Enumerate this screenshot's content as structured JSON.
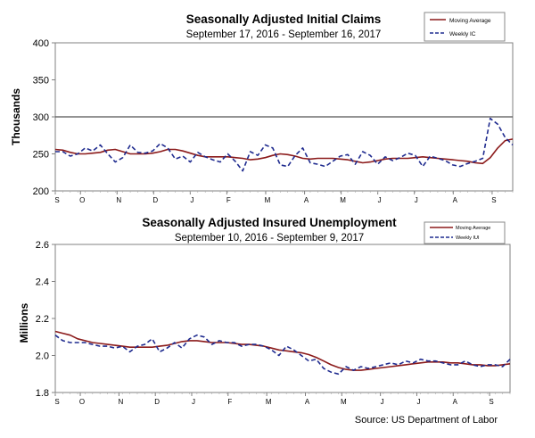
{
  "chart_data": [
    {
      "type": "line",
      "title": "Seasonally Adjusted Initial Claims",
      "subtitle": "September 17, 2016  -  September 16, 2017",
      "ylabel": "Thousands",
      "xlabel": "",
      "ylim": [
        200,
        400
      ],
      "yticks": [
        200,
        250,
        300,
        350,
        400
      ],
      "reference_line": 300,
      "months": [
        "S",
        "O",
        "N",
        "D",
        "J",
        "F",
        "M",
        "A",
        "M",
        "J",
        "J",
        "A",
        "S"
      ],
      "legend": {
        "position": "top-right",
        "entries": [
          "Moving Average",
          "Weekly IC"
        ]
      },
      "series": [
        {
          "name": "Moving Average",
          "color": "#8b1a1a",
          "style": "solid",
          "values": [
            256,
            255,
            252,
            250,
            250,
            251,
            252,
            255,
            256,
            253,
            250,
            250,
            250,
            251,
            253,
            256,
            256,
            254,
            251,
            248,
            246,
            246,
            246,
            246,
            245,
            244,
            242,
            243,
            245,
            248,
            250,
            249,
            247,
            244,
            243,
            244,
            244,
            244,
            243,
            242,
            240,
            238,
            239,
            241,
            243,
            244,
            244,
            244,
            245,
            246,
            245,
            244,
            243,
            242,
            241,
            240,
            238,
            237,
            245,
            258,
            268,
            270
          ]
        },
        {
          "name": "Weekly IC",
          "color": "#1f2b8f",
          "style": "dashed",
          "values": [
            253,
            253,
            247,
            250,
            258,
            254,
            262,
            250,
            239,
            245,
            262,
            252,
            251,
            254,
            264,
            258,
            243,
            247,
            239,
            252,
            246,
            242,
            239,
            250,
            240,
            227,
            253,
            248,
            262,
            258,
            235,
            233,
            248,
            258,
            238,
            236,
            233,
            240,
            247,
            249,
            236,
            253,
            248,
            236,
            246,
            241,
            245,
            251,
            248,
            233,
            247,
            244,
            241,
            235,
            233,
            237,
            240,
            244,
            298,
            290,
            272,
            262
          ]
        }
      ]
    },
    {
      "type": "line",
      "title": "Seasonally Adjusted Insured Unemployment",
      "subtitle": "September 10, 2016  -  September 9, 2017",
      "ylabel": "Millions",
      "xlabel": "",
      "ylim": [
        1.8,
        2.6
      ],
      "yticks": [
        "1.8",
        "2.0",
        "2.2",
        "2.4",
        "2.6"
      ],
      "months": [
        "S",
        "O",
        "N",
        "D",
        "J",
        "F",
        "M",
        "A",
        "M",
        "J",
        "J",
        "A",
        "S"
      ],
      "legend": {
        "position": "top-right",
        "entries": [
          "Moving Average",
          "Weekly IUI"
        ]
      },
      "series": [
        {
          "name": "Moving Average",
          "color": "#8b1a1a",
          "style": "solid",
          "values": [
            2.13,
            2.12,
            2.11,
            2.09,
            2.08,
            2.07,
            2.065,
            2.06,
            2.055,
            2.05,
            2.045,
            2.045,
            2.045,
            2.045,
            2.05,
            2.055,
            2.065,
            2.075,
            2.08,
            2.08,
            2.075,
            2.07,
            2.07,
            2.07,
            2.065,
            2.06,
            2.06,
            2.055,
            2.05,
            2.04,
            2.03,
            2.025,
            2.02,
            2.015,
            2.005,
            1.99,
            1.97,
            1.95,
            1.935,
            1.925,
            1.92,
            1.92,
            1.925,
            1.93,
            1.935,
            1.94,
            1.945,
            1.95,
            1.955,
            1.96,
            1.965,
            1.965,
            1.965,
            1.96,
            1.96,
            1.955,
            1.95,
            1.95,
            1.945,
            1.945,
            1.95,
            1.955
          ]
        },
        {
          "name": "Weekly IUI",
          "color": "#1f2b8f",
          "style": "dashed",
          "values": [
            2.11,
            2.08,
            2.07,
            2.07,
            2.07,
            2.06,
            2.05,
            2.05,
            2.04,
            2.05,
            2.02,
            2.05,
            2.06,
            2.09,
            2.02,
            2.04,
            2.07,
            2.04,
            2.09,
            2.11,
            2.1,
            2.06,
            2.08,
            2.07,
            2.07,
            2.05,
            2.06,
            2.06,
            2.05,
            2.03,
            2.0,
            2.05,
            2.03,
            2.0,
            1.97,
            1.98,
            1.93,
            1.91,
            1.9,
            1.94,
            1.92,
            1.94,
            1.93,
            1.94,
            1.95,
            1.96,
            1.95,
            1.97,
            1.96,
            1.98,
            1.97,
            1.97,
            1.96,
            1.95,
            1.95,
            1.97,
            1.95,
            1.94,
            1.95,
            1.95,
            1.94,
            1.98
          ]
        }
      ]
    }
  ],
  "source": "Source: US Department of Labor"
}
